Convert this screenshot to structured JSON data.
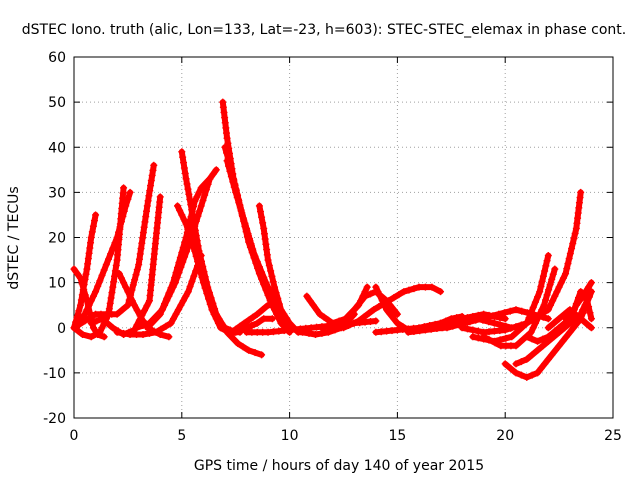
{
  "chart_data": {
    "type": "scatter",
    "title": "dSTEC Iono. truth (alic, Lon=133, Lat=-23, h=603): STEC-STEC_elemax in phase cont.",
    "xlabel": "GPS time / hours of day 140 of year 2015",
    "ylabel": "dSTEC  / TECUs",
    "xlim": [
      0,
      25
    ],
    "ylim": [
      -20,
      60
    ],
    "xticks": [
      0,
      5,
      10,
      15,
      20,
      25
    ],
    "yticks": [
      -20,
      -10,
      0,
      10,
      20,
      30,
      40,
      50,
      60
    ],
    "grid": true,
    "marker": "plus",
    "color": "#ff0000",
    "series": [
      {
        "x": [
          0.0,
          0.3,
          0.6,
          0.8,
          1.0
        ],
        "y": [
          0,
          5,
          13,
          20,
          25
        ]
      },
      {
        "x": [
          0.0,
          0.4,
          0.8,
          1.2,
          1.6,
          2.0,
          2.3
        ],
        "y": [
          0,
          -1.5,
          -2,
          -1,
          3,
          15,
          31
        ]
      },
      {
        "x": [
          0.0,
          0.3,
          0.6,
          0.8,
          0.9,
          1.1,
          1.4
        ],
        "y": [
          13,
          11,
          6,
          2,
          0,
          -1.5,
          -2
        ]
      },
      {
        "x": [
          0.0,
          0.5,
          1.0,
          1.5,
          2.0,
          2.5,
          3.0,
          3.4,
          3.7
        ],
        "y": [
          0,
          1.5,
          3,
          3,
          3,
          5,
          14,
          27,
          36
        ]
      },
      {
        "x": [
          0.0,
          0.5,
          1.0,
          1.5,
          2.0,
          2.4,
          2.6
        ],
        "y": [
          0,
          3,
          8,
          14,
          20,
          27,
          30
        ]
      },
      {
        "x": [
          0.8,
          1.3,
          1.8,
          2.3,
          2.8,
          3.5,
          4.0
        ],
        "y": [
          1,
          2,
          0,
          -1.5,
          -0.5,
          6,
          29
        ]
      },
      {
        "x": [
          2.0,
          2.6,
          3.2,
          3.8,
          4.5,
          5.3,
          5.9
        ],
        "y": [
          -1,
          -1.5,
          -1.5,
          -1,
          1,
          8,
          16
        ]
      },
      {
        "x": [
          2.1,
          2.4,
          2.8,
          3.2,
          3.6,
          4.0,
          4.4
        ],
        "y": [
          12,
          9,
          5,
          1.5,
          -0.5,
          -1.5,
          -2
        ]
      },
      {
        "x": [
          2.9,
          3.5,
          4.1,
          4.7,
          5.3,
          5.9,
          6.3,
          6.6
        ],
        "y": [
          0,
          1,
          4,
          10,
          18,
          27,
          33,
          35
        ]
      },
      {
        "x": [
          3.4,
          4.0,
          4.6,
          5.2,
          5.6,
          5.9,
          6.1,
          6.3
        ],
        "y": [
          0,
          3,
          10,
          20,
          28,
          31,
          32,
          33
        ]
      },
      {
        "x": [
          5.0,
          5.2,
          5.5,
          5.8,
          6.2,
          6.6,
          7.1,
          7.6,
          8.1,
          8.7
        ],
        "y": [
          39,
          33,
          25,
          17,
          9,
          3,
          -1,
          -3.5,
          -5,
          -6
        ]
      },
      {
        "x": [
          4.8,
          5.2,
          5.6,
          6.0,
          6.4,
          6.8,
          7.2,
          7.7
        ],
        "y": [
          27,
          23,
          17,
          10,
          4,
          0,
          -1,
          -1
        ]
      },
      {
        "x": [
          6.9,
          7.1,
          7.4,
          7.8,
          8.3,
          8.9,
          9.4,
          9.8,
          10.0
        ],
        "y": [
          50,
          42,
          33,
          25,
          17,
          10,
          5,
          1,
          0
        ]
      },
      {
        "x": [
          7.0,
          7.3,
          7.7,
          8.1,
          8.6,
          9.1,
          9.6,
          10.0
        ],
        "y": [
          40,
          35,
          27,
          19,
          12,
          6,
          1,
          -1
        ]
      },
      {
        "x": [
          7.1,
          7.5,
          8.0,
          8.5,
          9.0,
          9.5,
          10.0
        ],
        "y": [
          37,
          30,
          22,
          14,
          8,
          3,
          0
        ]
      },
      {
        "x": [
          6.5,
          7.0,
          7.5,
          8.0,
          8.5,
          8.8,
          9.2
        ],
        "y": [
          3,
          0,
          -1,
          0,
          1,
          2,
          2
        ]
      },
      {
        "x": [
          7.3,
          7.9,
          8.5,
          9.0,
          9.5
        ],
        "y": [
          -1,
          1,
          3,
          5,
          5
        ]
      },
      {
        "x": [
          8.6,
          8.8,
          9.0,
          9.3,
          9.6,
          10.0,
          10.4,
          10.8
        ],
        "y": [
          27,
          22,
          15,
          9,
          4,
          1,
          -1,
          -1
        ]
      },
      {
        "x": [
          8.0,
          9.0,
          10.0,
          11.0,
          12.0,
          13.0,
          14.0
        ],
        "y": [
          -1,
          -1,
          -0.5,
          0,
          0.5,
          1,
          1.5
        ]
      },
      {
        "x": [
          10.0,
          10.6,
          11.2,
          11.8,
          12.4,
          13.0
        ],
        "y": [
          0,
          -1,
          -1.5,
          -1,
          0,
          3
        ]
      },
      {
        "x": [
          10.8,
          11.4,
          12.0,
          12.6,
          13.2,
          13.6
        ],
        "y": [
          7,
          3,
          1,
          2,
          5,
          9
        ]
      },
      {
        "x": [
          11.5,
          12.0,
          12.5,
          13.0,
          13.5,
          14.0,
          14.5,
          15.0
        ],
        "y": [
          0,
          0.5,
          1.5,
          4,
          7,
          8,
          6,
          3
        ]
      },
      {
        "x": [
          12.5,
          13.2,
          13.9,
          14.6,
          15.3,
          16.0,
          16.6,
          17.0
        ],
        "y": [
          0,
          1.5,
          4,
          6,
          8,
          9,
          9,
          8
        ]
      },
      {
        "x": [
          14.0,
          14.5,
          15.0,
          15.5,
          16.0,
          16.5,
          17.0,
          17.5,
          18.0
        ],
        "y": [
          9,
          4,
          1,
          -0.5,
          -0.5,
          0,
          1,
          2,
          2.5
        ]
      },
      {
        "x": [
          14.0,
          15.0,
          16.0,
          17.0,
          18.0,
          19.0,
          20.0
        ],
        "y": [
          -1,
          -0.5,
          0,
          1,
          2,
          3,
          2
        ]
      },
      {
        "x": [
          15.5,
          16.3,
          17.1,
          17.9,
          18.7,
          19.5,
          20.3
        ],
        "y": [
          -1,
          -0.5,
          0,
          1,
          2,
          1,
          0
        ]
      },
      {
        "x": [
          16.5,
          17.3,
          18.1,
          18.9,
          19.7,
          20.5,
          21.3,
          22.0
        ],
        "y": [
          0,
          0,
          1,
          2,
          3,
          4,
          3,
          2
        ]
      },
      {
        "x": [
          18.0,
          19.0,
          20.0,
          21.0,
          22.0,
          22.8,
          23.3,
          23.5
        ],
        "y": [
          0,
          -1,
          -0.5,
          1,
          4,
          12,
          22,
          30
        ]
      },
      {
        "x": [
          18.5,
          19.5,
          20.3,
          21.0,
          21.6,
          22.0
        ],
        "y": [
          -2,
          -3,
          -2,
          1,
          8,
          16
        ]
      },
      {
        "x": [
          19.0,
          19.8,
          20.5,
          21.2,
          21.8,
          22.3
        ],
        "y": [
          -2,
          -4,
          -4,
          -1,
          5,
          13
        ]
      },
      {
        "x": [
          20.0,
          20.5,
          21.0,
          21.5,
          22.0,
          22.5,
          23.0,
          23.5,
          24.0
        ],
        "y": [
          -8,
          -10,
          -11,
          -10,
          -7,
          -4,
          -1,
          2,
          8
        ]
      },
      {
        "x": [
          20.5,
          21.0,
          21.5,
          22.0,
          22.5,
          23.0,
          23.5,
          23.9
        ],
        "y": [
          -8,
          -7,
          -5,
          -3,
          -1,
          1,
          3,
          7
        ]
      },
      {
        "x": [
          21.0,
          21.5,
          22.0,
          22.5,
          23.0,
          23.3,
          23.6,
          24.0
        ],
        "y": [
          -2,
          -3,
          -2,
          0,
          2,
          5,
          7,
          10
        ]
      },
      {
        "x": [
          22.0,
          22.5,
          23.0,
          23.5,
          24.0
        ],
        "y": [
          0,
          2,
          4,
          2,
          0
        ]
      },
      {
        "x": [
          22.8,
          23.2,
          23.5,
          23.8,
          24.0
        ],
        "y": [
          2,
          4,
          8,
          6,
          2
        ]
      }
    ]
  }
}
